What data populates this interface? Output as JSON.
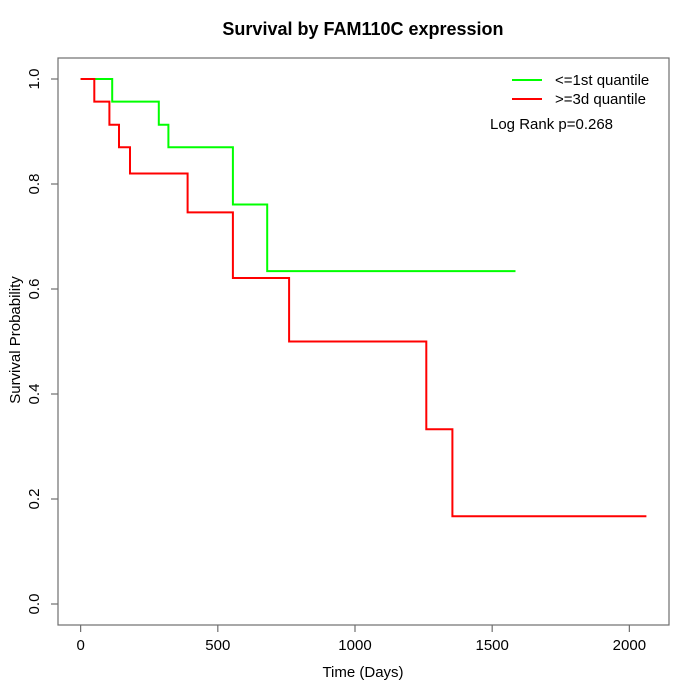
{
  "chart_data": {
    "type": "line",
    "subtype": "kaplan-meier-step",
    "title": "Survival by FAM110C expression",
    "xlabel": "Time (Days)",
    "ylabel": "Survival Probability",
    "x_ticks": [
      0,
      500,
      1000,
      1500,
      2000
    ],
    "y_ticks": [
      0.0,
      0.2,
      0.4,
      0.6,
      0.8,
      1.0
    ],
    "xlim": [
      0,
      2062
    ],
    "ylim": [
      0,
      1
    ],
    "grid": false,
    "annotation": "Log Rank p=0.268",
    "legend": {
      "position": "top-right",
      "entries": [
        {
          "label": "<=1st quantile",
          "color": "#00ff00"
        },
        {
          "label": ">=3d quantile",
          "color": "#ff0000"
        }
      ]
    },
    "series": [
      {
        "name": "<=1st quantile",
        "color": "#00ff00",
        "start_probability": 1.0,
        "drops": [
          [
            115,
            0.957
          ],
          [
            285,
            0.913
          ],
          [
            320,
            0.87
          ],
          [
            555,
            0.761
          ],
          [
            680,
            0.634
          ]
        ],
        "end_time": 1585
      },
      {
        "name": ">=3d quantile",
        "color": "#ff0000",
        "start_probability": 1.0,
        "drops": [
          [
            50,
            0.957
          ],
          [
            105,
            0.913
          ],
          [
            140,
            0.87
          ],
          [
            180,
            0.82
          ],
          [
            390,
            0.746
          ],
          [
            555,
            0.621
          ],
          [
            760,
            0.5
          ],
          [
            1260,
            0.333
          ],
          [
            1355,
            0.167
          ]
        ],
        "end_time": 2062
      }
    ]
  }
}
